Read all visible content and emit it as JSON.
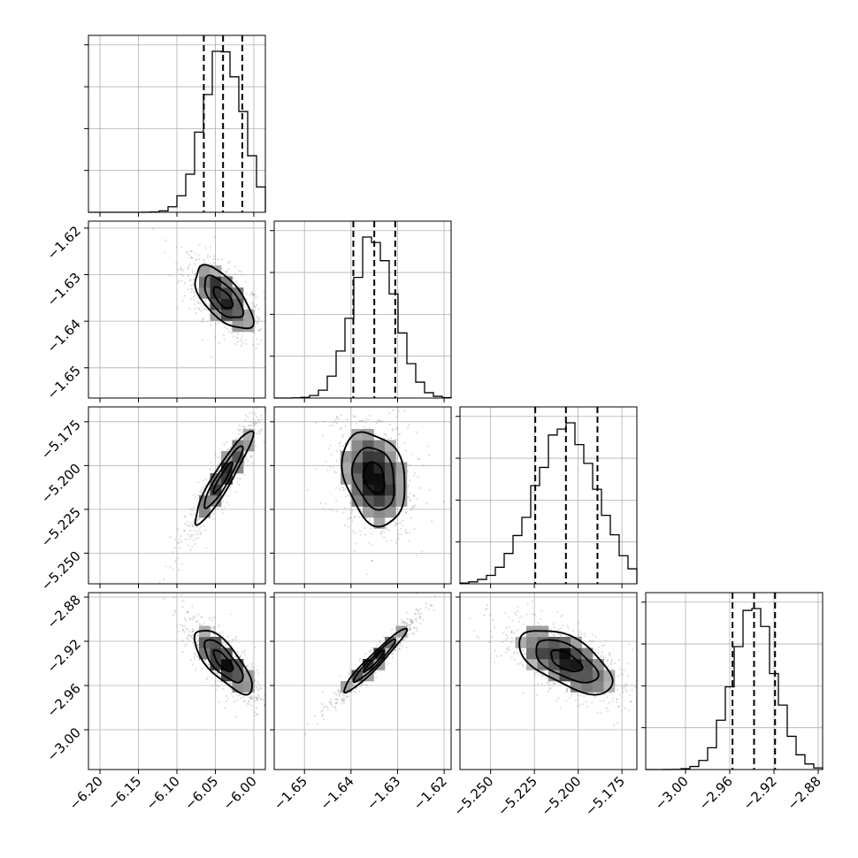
{
  "chart_data": {
    "type": "corner",
    "title": "",
    "grid": true,
    "parameters": [
      {
        "index": 0,
        "label": "",
        "median": -6.04,
        "q16": -6.065,
        "q84": -6.015,
        "range": [
          -6.215,
          -5.985
        ],
        "skew": -0.6,
        "ticks": [
          -6.2,
          -6.15,
          -6.1,
          -6.05,
          -6.0
        ],
        "tick_labels": [
          "−6.20",
          "−6.15",
          "−6.10",
          "−6.05",
          "−6.00"
        ]
      },
      {
        "index": 1,
        "label": "",
        "median": -1.635,
        "q16": -1.6395,
        "q84": -1.6305,
        "range": [
          -1.6565,
          -1.6185
        ],
        "skew": 0,
        "ticks": [
          -1.65,
          -1.64,
          -1.63,
          -1.62
        ],
        "tick_labels": [
          "−1.65",
          "−1.64",
          "−1.63",
          "−1.62"
        ]
      },
      {
        "index": 2,
        "label": "",
        "median": -5.207,
        "q16": -5.2245,
        "q84": -5.189,
        "range": [
          -5.2675,
          -5.1665
        ],
        "skew": 0,
        "ticks": [
          -5.25,
          -5.225,
          -5.2,
          -5.175
        ],
        "tick_labels": [
          "−5.250",
          "−5.225",
          "−5.200",
          "−5.175"
        ]
      },
      {
        "index": 3,
        "label": "",
        "median": -2.938,
        "q16": -2.9575,
        "q84": -2.919,
        "range": [
          -3.036,
          -2.876
        ],
        "skew": 0,
        "ticks": [
          -3.0,
          -2.96,
          -2.92,
          -2.88
        ],
        "tick_labels": [
          "−3.00",
          "−2.96",
          "−2.92",
          "−2.88"
        ]
      }
    ],
    "correlations": {
      "1-0": -0.65,
      "2-0": 0.93,
      "2-1": -0.25,
      "3-0": -0.75,
      "3-1": 0.96,
      "3-2": -0.6
    },
    "contour_levels_sigma": [
      0.5,
      1.0,
      1.5
    ],
    "colors": {
      "line": "#000000",
      "grid": "#b0b0b0",
      "points": "#888888"
    }
  }
}
